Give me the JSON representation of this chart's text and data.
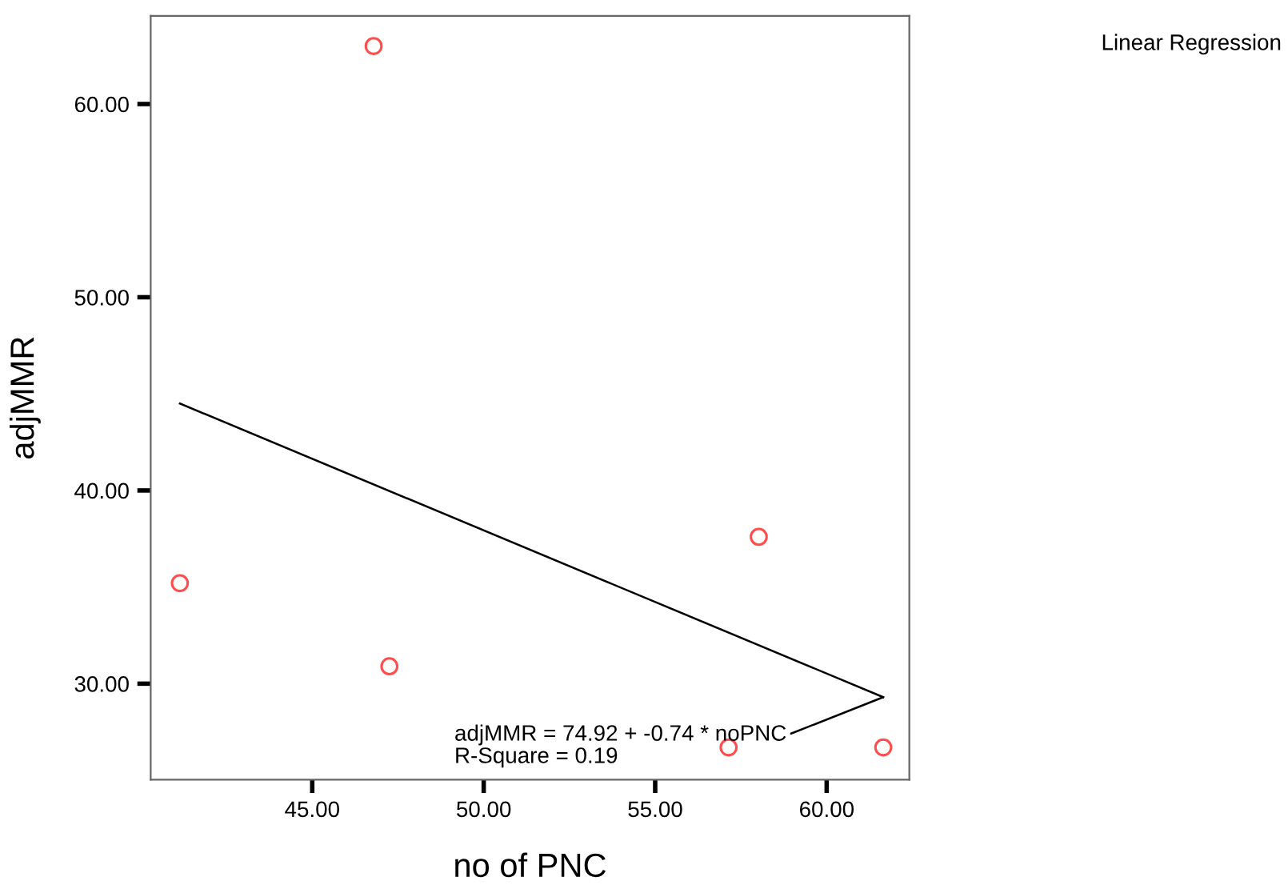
{
  "chart_data": {
    "type": "scatter",
    "xlabel": "no of PNC",
    "ylabel": "adjMMR",
    "xlim": [
      40.29,
      62.41
    ],
    "ylim": [
      25.03,
      64.56
    ],
    "xticks": [
      {
        "value": 45,
        "label": "45.00"
      },
      {
        "value": 50,
        "label": "50.00"
      },
      {
        "value": 55,
        "label": "55.00"
      },
      {
        "value": 60,
        "label": "60.00"
      }
    ],
    "yticks": [
      {
        "value": 30,
        "label": "30.00"
      },
      {
        "value": 40,
        "label": "40.00"
      },
      {
        "value": 50,
        "label": "50.00"
      },
      {
        "value": 60,
        "label": "60.00"
      }
    ],
    "grid": false,
    "series": [
      {
        "marker": "circle",
        "color": "#ff4d4d",
        "x": [
          41.14,
          46.79,
          47.25,
          58.02,
          57.14,
          61.65
        ],
        "values": [
          35.2,
          63.0,
          30.9,
          37.6,
          26.7,
          26.7
        ]
      },
      {
        "type": "line",
        "marker": "none",
        "color": "#000000",
        "x": [
          41.14,
          61.65
        ],
        "values": [
          44.5,
          29.3
        ]
      }
    ],
    "annotations": [
      "Linear Regression",
      {
        "text": "adjMMR = 74.92 + -0.74 * noPNC\nR-Square = 0.19",
        "x": 61.65,
        "y": 29.3
      }
    ]
  }
}
